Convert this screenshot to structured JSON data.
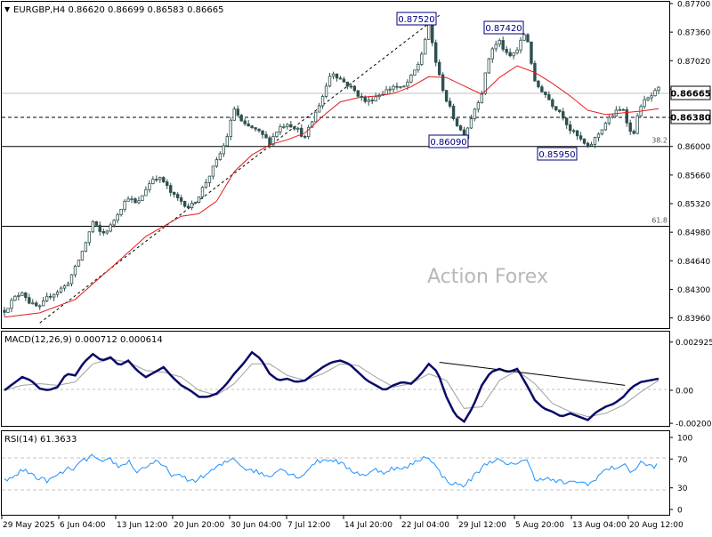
{
  "chart_data": [
    {
      "type": "candlestick",
      "symbol_info": "EURGBP,H4",
      "ohlc": "0.86620 0.86699 0.86583 0.86665",
      "current_price": "0.86665",
      "dashed_level": "0.86380",
      "watermark": "Action Forex",
      "ylim": [
        0.8385,
        0.877
      ],
      "price_ticks": [
        "0.87700",
        "0.87360",
        "0.87020",
        "0.86680",
        "0.86340",
        "0.86000",
        "0.85660",
        "0.85320",
        "0.84980",
        "0.84640",
        "0.84300",
        "0.83960"
      ],
      "fib_levels": [
        {
          "label": "38.2",
          "value": 0.86
        },
        {
          "label": "61.8",
          "value": 0.8505
        }
      ],
      "annotations": [
        {
          "label": "0.87520",
          "value": 0.8752
        },
        {
          "label": "0.87420",
          "value": 0.8742
        },
        {
          "label": "0.86090",
          "value": 0.8609
        },
        {
          "label": "0.85950",
          "value": 0.8595
        }
      ],
      "close_path": [
        [
          0,
          0.8405
        ],
        [
          5,
          0.8418
        ],
        [
          10,
          0.8428
        ],
        [
          15,
          0.8412
        ],
        [
          20,
          0.8408
        ],
        [
          25,
          0.8422
        ],
        [
          30,
          0.8428
        ],
        [
          35,
          0.8435
        ],
        [
          40,
          0.8455
        ],
        [
          45,
          0.848
        ],
        [
          50,
          0.851
        ],
        [
          55,
          0.8495
        ],
        [
          60,
          0.8505
        ],
        [
          65,
          0.8525
        ],
        [
          70,
          0.854
        ],
        [
          75,
          0.853
        ],
        [
          80,
          0.855
        ],
        [
          85,
          0.8565
        ],
        [
          90,
          0.8558
        ],
        [
          95,
          0.8542
        ],
        [
          100,
          0.8535
        ],
        [
          105,
          0.8527
        ],
        [
          110,
          0.8542
        ],
        [
          115,
          0.8562
        ],
        [
          120,
          0.8582
        ],
        [
          125,
          0.8605
        ],
        [
          130,
          0.8645
        ],
        [
          135,
          0.8625
        ],
        [
          140,
          0.8622
        ],
        [
          145,
          0.8615
        ],
        [
          150,
          0.8605
        ],
        [
          155,
          0.8622
        ],
        [
          160,
          0.8628
        ],
        [
          165,
          0.8622
        ],
        [
          170,
          0.861
        ],
        [
          175,
          0.8635
        ],
        [
          180,
          0.866
        ],
        [
          185,
          0.869
        ],
        [
          190,
          0.868
        ],
        [
          195,
          0.8672
        ],
        [
          200,
          0.8662
        ],
        [
          205,
          0.8652
        ],
        [
          210,
          0.866
        ],
        [
          215,
          0.8665
        ],
        [
          220,
          0.8672
        ],
        [
          225,
          0.8668
        ],
        [
          230,
          0.8682
        ],
        [
          235,
          0.8702
        ],
        [
          240,
          0.8745
        ],
        [
          245,
          0.869
        ],
        [
          250,
          0.8655
        ],
        [
          255,
          0.863
        ],
        [
          260,
          0.8612
        ],
        [
          265,
          0.864
        ],
        [
          270,
          0.8665
        ],
        [
          275,
          0.8715
        ],
        [
          280,
          0.8725
        ],
        [
          285,
          0.8705
        ],
        [
          290,
          0.8715
        ],
        [
          295,
          0.8738
        ],
        [
          300,
          0.8675
        ],
        [
          305,
          0.8665
        ],
        [
          310,
          0.865
        ],
        [
          315,
          0.864
        ],
        [
          320,
          0.862
        ],
        [
          325,
          0.861
        ],
        [
          330,
          0.8598
        ],
        [
          335,
          0.8612
        ],
        [
          340,
          0.8628
        ],
        [
          345,
          0.864
        ],
        [
          350,
          0.8645
        ],
        [
          355,
          0.861
        ],
        [
          360,
          0.865
        ],
        [
          365,
          0.8658
        ],
        [
          370,
          0.8668
        ]
      ],
      "ma_path": [
        [
          0,
          0.8397
        ],
        [
          20,
          0.8402
        ],
        [
          40,
          0.8418
        ],
        [
          60,
          0.8455
        ],
        [
          80,
          0.8493
        ],
        [
          100,
          0.8517
        ],
        [
          110,
          0.852
        ],
        [
          120,
          0.8535
        ],
        [
          130,
          0.857
        ],
        [
          140,
          0.859
        ],
        [
          150,
          0.8602
        ],
        [
          160,
          0.8608
        ],
        [
          170,
          0.8616
        ],
        [
          180,
          0.8636
        ],
        [
          190,
          0.8653
        ],
        [
          200,
          0.8658
        ],
        [
          210,
          0.866
        ],
        [
          220,
          0.8663
        ],
        [
          230,
          0.8671
        ],
        [
          240,
          0.8683
        ],
        [
          250,
          0.8682
        ],
        [
          260,
          0.8672
        ],
        [
          270,
          0.8662
        ],
        [
          280,
          0.8682
        ],
        [
          290,
          0.8696
        ],
        [
          300,
          0.8688
        ],
        [
          310,
          0.8675
        ],
        [
          320,
          0.866
        ],
        [
          330,
          0.8643
        ],
        [
          340,
          0.8638
        ],
        [
          350,
          0.864
        ],
        [
          360,
          0.8642
        ],
        [
          370,
          0.8645
        ]
      ],
      "trendline": {
        "from": [
          20,
          0.839
        ],
        "to": [
          246,
          0.8756
        ]
      }
    },
    {
      "type": "line",
      "name": "MACD",
      "label": "MACD(12,26,9) 0.000712 0.000614",
      "ylim": [
        -0.00205,
        0.00318
      ],
      "ticks": [
        "0.002925",
        "0.00",
        "-0.002002"
      ],
      "tick_values": [
        0.002925,
        0.0,
        -0.002002
      ],
      "macd": [
        [
          0,
          0.0
        ],
        [
          5,
          0.0004
        ],
        [
          10,
          0.0008
        ],
        [
          15,
          0.0006
        ],
        [
          20,
          0.0001
        ],
        [
          25,
          0.0
        ],
        [
          30,
          0.0002
        ],
        [
          35,
          0.001
        ],
        [
          40,
          0.0009
        ],
        [
          45,
          0.0017
        ],
        [
          50,
          0.0022
        ],
        [
          55,
          0.0018
        ],
        [
          60,
          0.002
        ],
        [
          65,
          0.0015
        ],
        [
          70,
          0.0018
        ],
        [
          75,
          0.0012
        ],
        [
          80,
          0.0008
        ],
        [
          85,
          0.0011
        ],
        [
          90,
          0.0014
        ],
        [
          95,
          0.0008
        ],
        [
          100,
          0.0003
        ],
        [
          105,
          0.0
        ],
        [
          110,
          -0.0004
        ],
        [
          115,
          -0.0004
        ],
        [
          120,
          -0.0002
        ],
        [
          125,
          0.0003
        ],
        [
          130,
          0.001
        ],
        [
          135,
          0.0016
        ],
        [
          140,
          0.0023
        ],
        [
          145,
          0.0019
        ],
        [
          150,
          0.001
        ],
        [
          155,
          0.0006
        ],
        [
          160,
          0.0007
        ],
        [
          165,
          0.0005
        ],
        [
          170,
          0.0006
        ],
        [
          175,
          0.001
        ],
        [
          180,
          0.0014
        ],
        [
          185,
          0.0017
        ],
        [
          190,
          0.0018
        ],
        [
          195,
          0.0016
        ],
        [
          200,
          0.0011
        ],
        [
          205,
          0.0006
        ],
        [
          210,
          0.0003
        ],
        [
          215,
          0.0
        ],
        [
          220,
          0.0003
        ],
        [
          225,
          0.0005
        ],
        [
          230,
          0.0004
        ],
        [
          235,
          0.0009
        ],
        [
          240,
          0.0016
        ],
        [
          245,
          0.0011
        ],
        [
          250,
          -0.0004
        ],
        [
          255,
          -0.0015
        ],
        [
          260,
          -0.0019
        ],
        [
          265,
          -0.001
        ],
        [
          270,
          0.0003
        ],
        [
          275,
          0.0011
        ],
        [
          280,
          0.0013
        ],
        [
          285,
          0.0011
        ],
        [
          290,
          0.0013
        ],
        [
          295,
          0.0004
        ],
        [
          300,
          -0.0006
        ],
        [
          305,
          -0.0011
        ],
        [
          310,
          -0.0013
        ],
        [
          315,
          -0.0016
        ],
        [
          320,
          -0.0014
        ],
        [
          325,
          -0.0016
        ],
        [
          330,
          -0.0018
        ],
        [
          335,
          -0.0013
        ],
        [
          340,
          -0.001
        ],
        [
          345,
          -0.0008
        ],
        [
          350,
          -0.0004
        ],
        [
          355,
          0.0002
        ],
        [
          360,
          0.0005
        ],
        [
          365,
          0.0006
        ],
        [
          370,
          0.0007
        ]
      ],
      "signal": [
        [
          0,
          0.0
        ],
        [
          10,
          0.0003
        ],
        [
          20,
          0.0004
        ],
        [
          30,
          0.0003
        ],
        [
          40,
          0.0005
        ],
        [
          50,
          0.0016
        ],
        [
          60,
          0.0019
        ],
        [
          70,
          0.0017
        ],
        [
          80,
          0.0012
        ],
        [
          90,
          0.0011
        ],
        [
          100,
          0.0008
        ],
        [
          110,
          0.0
        ],
        [
          120,
          -0.0003
        ],
        [
          130,
          0.0004
        ],
        [
          140,
          0.0016
        ],
        [
          150,
          0.0016
        ],
        [
          160,
          0.0009
        ],
        [
          170,
          0.0006
        ],
        [
          180,
          0.001
        ],
        [
          190,
          0.0016
        ],
        [
          200,
          0.0015
        ],
        [
          210,
          0.0008
        ],
        [
          220,
          0.0002
        ],
        [
          230,
          0.0004
        ],
        [
          240,
          0.001
        ],
        [
          250,
          0.0006
        ],
        [
          260,
          -0.0011
        ],
        [
          270,
          -0.001
        ],
        [
          280,
          0.0006
        ],
        [
          290,
          0.0012
        ],
        [
          300,
          0.0004
        ],
        [
          310,
          -0.0008
        ],
        [
          320,
          -0.0013
        ],
        [
          330,
          -0.0016
        ],
        [
          340,
          -0.0014
        ],
        [
          350,
          -0.0009
        ],
        [
          360,
          -0.0001
        ],
        [
          370,
          0.0006
        ]
      ],
      "trendline": {
        "from": [
          246,
          0.0017
        ],
        "to": [
          351,
          0.0003
        ]
      }
    },
    {
      "type": "line",
      "name": "RSI",
      "label": "RSI(14) 61.3633",
      "ylim": [
        0,
        100
      ],
      "ticks": [
        "100",
        "70",
        "30",
        "0"
      ],
      "tick_values": [
        100,
        70,
        30,
        0
      ],
      "rsi": [
        [
          0,
          40
        ],
        [
          5,
          45
        ],
        [
          10,
          55
        ],
        [
          15,
          50
        ],
        [
          20,
          42
        ],
        [
          25,
          40
        ],
        [
          30,
          47
        ],
        [
          35,
          55
        ],
        [
          40,
          58
        ],
        [
          45,
          68
        ],
        [
          50,
          75
        ],
        [
          55,
          63
        ],
        [
          60,
          70
        ],
        [
          65,
          58
        ],
        [
          70,
          68
        ],
        [
          75,
          52
        ],
        [
          80,
          60
        ],
        [
          85,
          66
        ],
        [
          90,
          60
        ],
        [
          95,
          48
        ],
        [
          100,
          45
        ],
        [
          105,
          40
        ],
        [
          110,
          42
        ],
        [
          115,
          50
        ],
        [
          120,
          58
        ],
        [
          125,
          65
        ],
        [
          130,
          72
        ],
        [
          135,
          58
        ],
        [
          140,
          55
        ],
        [
          145,
          50
        ],
        [
          150,
          45
        ],
        [
          155,
          58
        ],
        [
          160,
          52
        ],
        [
          165,
          45
        ],
        [
          170,
          50
        ],
        [
          175,
          65
        ],
        [
          180,
          68
        ],
        [
          185,
          70
        ],
        [
          190,
          64
        ],
        [
          195,
          56
        ],
        [
          200,
          50
        ],
        [
          205,
          48
        ],
        [
          210,
          55
        ],
        [
          215,
          52
        ],
        [
          220,
          58
        ],
        [
          225,
          55
        ],
        [
          230,
          62
        ],
        [
          235,
          70
        ],
        [
          240,
          74
        ],
        [
          245,
          55
        ],
        [
          250,
          40
        ],
        [
          255,
          35
        ],
        [
          260,
          33
        ],
        [
          265,
          45
        ],
        [
          270,
          58
        ],
        [
          275,
          68
        ],
        [
          280,
          68
        ],
        [
          285,
          60
        ],
        [
          290,
          66
        ],
        [
          295,
          70
        ],
        [
          300,
          42
        ],
        [
          305,
          44
        ],
        [
          310,
          40
        ],
        [
          315,
          38
        ],
        [
          320,
          36
        ],
        [
          325,
          40
        ],
        [
          330,
          33
        ],
        [
          335,
          45
        ],
        [
          340,
          55
        ],
        [
          345,
          58
        ],
        [
          350,
          62
        ],
        [
          355,
          52
        ],
        [
          360,
          65
        ],
        [
          365,
          60
        ],
        [
          370,
          61
        ]
      ]
    }
  ],
  "x_labels": [
    "29 May 2025",
    "6 Jun 04:00",
    "13 Jun 12:00",
    "20 Jun 20:00",
    "30 Jun 04:00",
    "7 Jul 12:00",
    "14 Jul 20:00",
    "22 Jul 04:00",
    "29 Jul 12:00",
    "5 Aug 20:00",
    "13 Aug 04:00",
    "20 Aug 12:00"
  ]
}
